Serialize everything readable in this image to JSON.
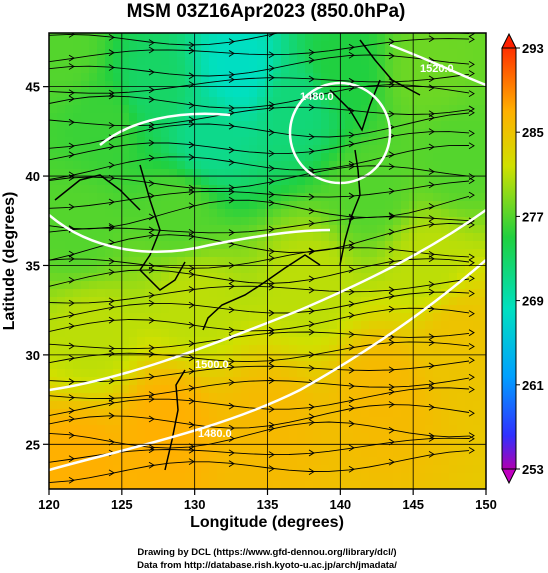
{
  "chart_data": {
    "type": "heatmap",
    "title": "MSM 03Z16Apr2023 (850.0hPa)",
    "xlabel": "Longitude (degrees)",
    "ylabel": "Latitude  (degrees)",
    "xlim": [
      120,
      150
    ],
    "ylim": [
      22.5,
      48
    ],
    "x_ticks": [
      "120",
      "125",
      "130",
      "135",
      "140",
      "145",
      "150"
    ],
    "y_ticks": [
      "25",
      "30",
      "35",
      "40",
      "45"
    ],
    "x_tick_values": [
      120,
      125,
      130,
      135,
      140,
      145,
      150
    ],
    "y_tick_values": [
      25,
      30,
      35,
      40,
      45
    ],
    "colorbar": {
      "range": [
        253,
        293
      ],
      "ticks": [
        "253",
        "261",
        "269",
        "277",
        "285",
        "293"
      ],
      "tick_values": [
        253,
        261,
        269,
        277,
        285,
        293
      ],
      "extend": "both"
    },
    "temperature_samples": [
      {
        "lon": 122,
        "lat": 24,
        "value": 287
      },
      {
        "lon": 128,
        "lat": 26,
        "value": 287
      },
      {
        "lon": 135,
        "lat": 26,
        "value": 286
      },
      {
        "lon": 143,
        "lat": 28,
        "value": 286
      },
      {
        "lon": 148,
        "lat": 31,
        "value": 285
      },
      {
        "lon": 123,
        "lat": 31,
        "value": 281
      },
      {
        "lon": 130,
        "lat": 33,
        "value": 281
      },
      {
        "lon": 138,
        "lat": 34,
        "value": 281
      },
      {
        "lon": 146,
        "lat": 35,
        "value": 281
      },
      {
        "lon": 122,
        "lat": 37,
        "value": 277
      },
      {
        "lon": 129,
        "lat": 38,
        "value": 277
      },
      {
        "lon": 142,
        "lat": 39,
        "value": 277
      },
      {
        "lon": 148,
        "lat": 41,
        "value": 277
      },
      {
        "lon": 124,
        "lat": 43,
        "value": 276
      },
      {
        "lon": 131,
        "lat": 42,
        "value": 271
      },
      {
        "lon": 133,
        "lat": 46,
        "value": 268
      },
      {
        "lon": 137,
        "lat": 44,
        "value": 272
      },
      {
        "lon": 140,
        "lat": 46,
        "value": 275
      },
      {
        "lon": 146,
        "lat": 46,
        "value": 278
      },
      {
        "lon": 121,
        "lat": 47,
        "value": 277
      },
      {
        "lon": 127,
        "lat": 45,
        "value": 273
      }
    ],
    "contour_labels": [
      "1520.0",
      "1480.0",
      "1500.0",
      "1480.0"
    ],
    "streamlines": "wind vectors shown as black arrows"
  },
  "credits": {
    "line1": "Drawing by DCL (https://www.gfd‐dennou.org/library/dcl/)",
    "line2": "Data from http://database.rish.kyoto‐u.ac.jp/arch/jmadata/"
  }
}
